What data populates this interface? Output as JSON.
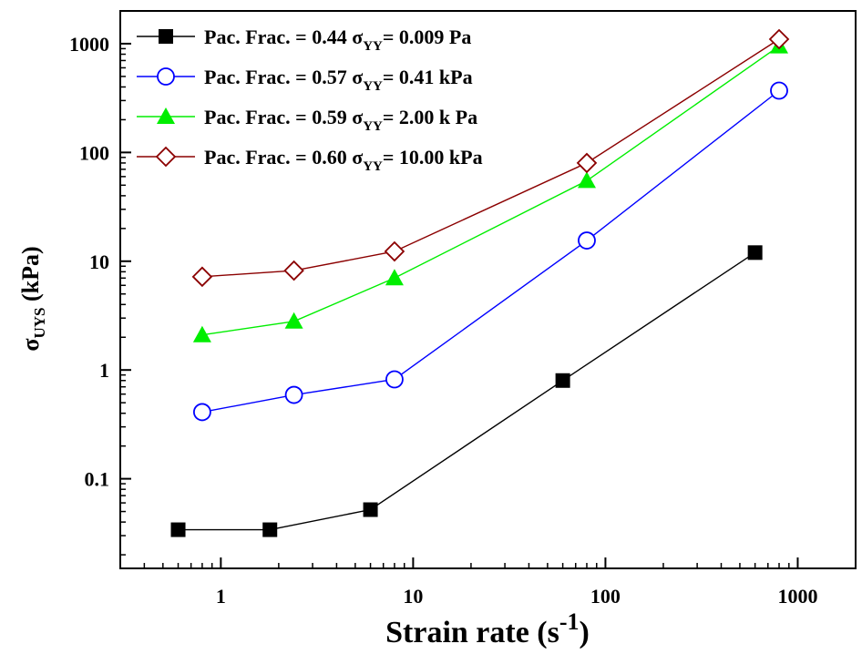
{
  "chart_data": {
    "type": "line",
    "xscale": "log",
    "yscale": "log",
    "xlim": [
      0.3,
      2000
    ],
    "ylim": [
      0.015,
      2000
    ],
    "grid": false,
    "legend_position": "top-left",
    "title": "",
    "xlabel": {
      "main": "Strain rate (s",
      "sup": "-1",
      "close": ")"
    },
    "ylabel": {
      "sigma": "σ",
      "sub": "UYS",
      "rest": " (kPa)"
    },
    "x_ticks": [
      {
        "value": 1,
        "label": "1"
      },
      {
        "value": 10,
        "label": "10"
      },
      {
        "value": 100,
        "label": "100"
      },
      {
        "value": 1000,
        "label": "1000"
      }
    ],
    "y_ticks": [
      {
        "value": 0.1,
        "label": "0.1"
      },
      {
        "value": 1,
        "label": "1"
      },
      {
        "value": 10,
        "label": "10"
      },
      {
        "value": 100,
        "label": "100"
      },
      {
        "value": 1000,
        "label": "1000"
      }
    ],
    "series": [
      {
        "legend": {
          "pre": "Pac. Frac. = 0.44  ",
          "sigma": "σ",
          "sub": "YY",
          "post": "= 0.009 Pa"
        },
        "color": "#000000",
        "marker": "square-filled",
        "x": [
          0.6,
          1.8,
          6,
          60,
          600
        ],
        "y": [
          0.034,
          0.034,
          0.052,
          0.8,
          12
        ]
      },
      {
        "legend": {
          "pre": "Pac. Frac. = 0.57  ",
          "sigma": "σ",
          "sub": "YY",
          "post": "= 0.41 kPa"
        },
        "color": "#0000ff",
        "marker": "circle-open",
        "x": [
          0.8,
          2.4,
          8,
          80,
          800
        ],
        "y": [
          0.41,
          0.59,
          0.82,
          15.5,
          370
        ]
      },
      {
        "legend": {
          "pre": "Pac. Frac. = 0.59 ",
          "sigma": "σ",
          "sub": "YY",
          "post": "= 2.00 k Pa"
        },
        "color": "#00ee00",
        "marker": "triangle-filled",
        "x": [
          0.8,
          2.4,
          8,
          80,
          800
        ],
        "y": [
          2.1,
          2.8,
          7,
          55,
          950
        ]
      },
      {
        "legend": {
          "pre": "Pac. Frac. = 0.60 ",
          "sigma": "σ",
          "sub": "YY",
          "post": "= 10.00 kPa"
        },
        "color": "#8b0000",
        "marker": "diamond-open",
        "x": [
          0.8,
          2.4,
          8,
          80,
          800
        ],
        "y": [
          7.2,
          8.2,
          12.3,
          80,
          1100
        ]
      }
    ]
  }
}
